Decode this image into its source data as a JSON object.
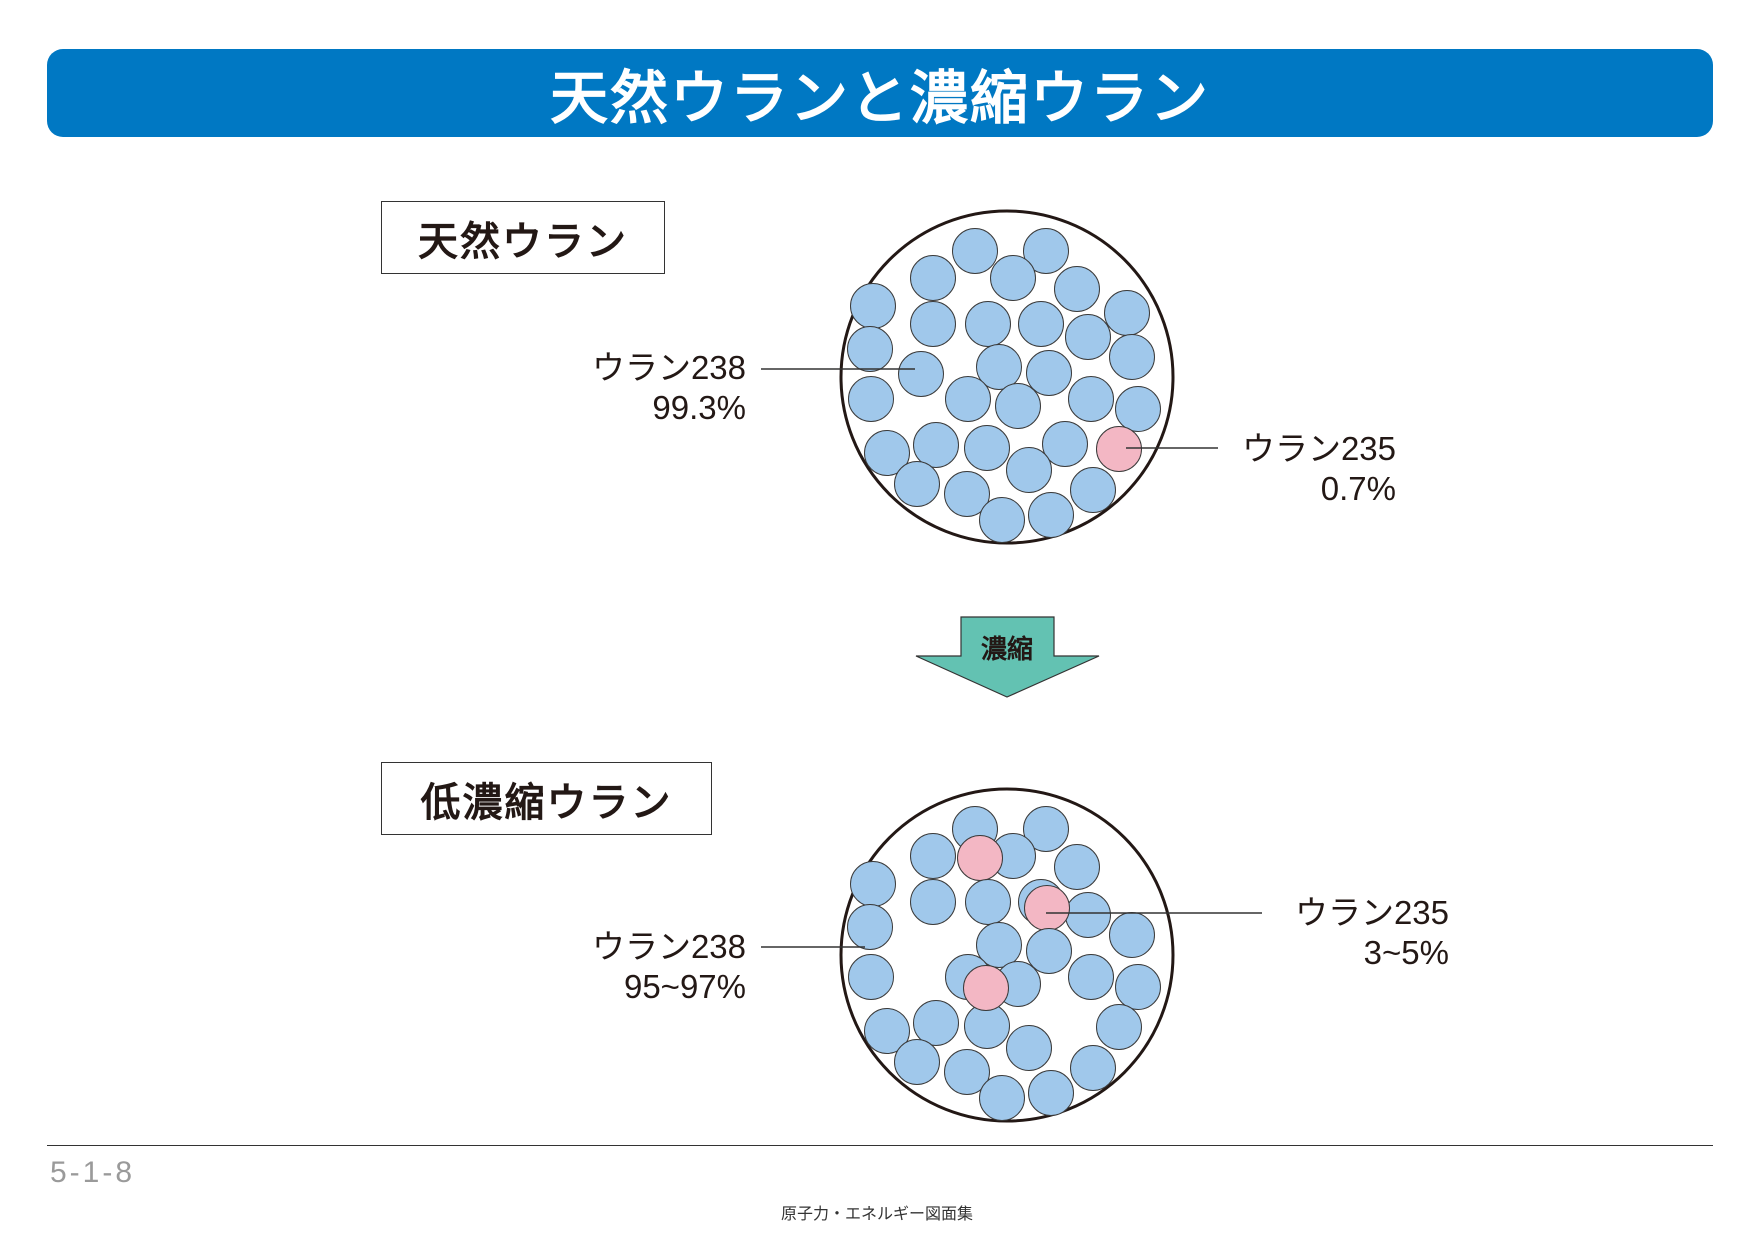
{
  "title": "天然ウランと濃縮ウラン",
  "natural": {
    "label": "天然ウラン",
    "u238": {
      "name": "ウラン238",
      "percent": "99.3%"
    },
    "u235": {
      "name": "ウラン235",
      "percent": "0.7%"
    }
  },
  "arrow": {
    "label": "濃縮"
  },
  "enriched": {
    "label": "低濃縮ウラン",
    "u238": {
      "name": "ウラン238",
      "percent": "95~97%"
    },
    "u235": {
      "name": "ウラン235",
      "percent": "3~5%"
    }
  },
  "colors": {
    "banner": "#0078c3",
    "u238_fill": "#a0c8eb",
    "u235_fill": "#f3b7c4",
    "arrow_fill": "#63c2b2"
  },
  "page_number": "5-1-8",
  "source": "原子力・エネルギー図面集"
}
